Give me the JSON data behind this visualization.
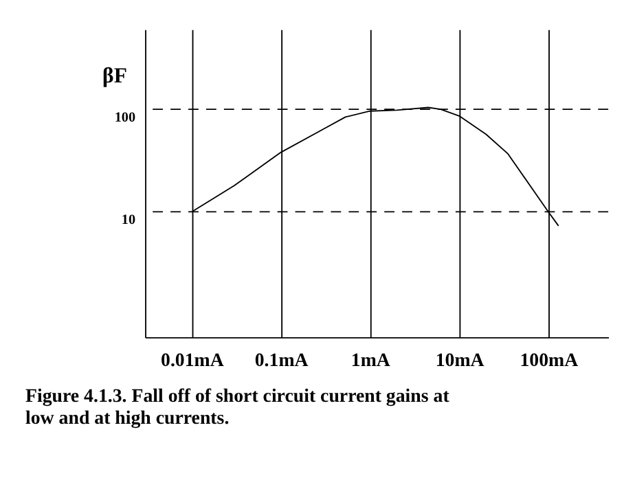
{
  "chart_data": {
    "type": "line",
    "ylabel": "βF",
    "log": "xy",
    "grid": "x",
    "marker": "none",
    "line_style": "solid",
    "x": [
      0.01,
      0.03,
      0.1,
      0.29,
      0.53,
      1,
      2,
      4.5,
      6.2,
      10,
      20,
      35,
      100,
      130
    ],
    "series": [
      {
        "color": "#000000",
        "values": [
          10,
          18,
          38,
          63,
          84,
          96,
          98,
          104,
          100,
          86,
          57,
          37,
          10,
          7.3
        ]
      }
    ],
    "xlim": [
      0.003,
      470
    ],
    "xticks": [
      {
        "value": 0.01,
        "label": "0.01mA"
      },
      {
        "value": 0.1,
        "label": "0.1mA"
      },
      {
        "value": 1,
        "label": "1mA"
      },
      {
        "value": 10,
        "label": "10mA"
      },
      {
        "value": 100,
        "label": "100mA"
      }
    ],
    "ylim": [
      0.6,
      600
    ],
    "yticks": [
      10,
      100
    ],
    "ref_lines": [
      {
        "axis": "y",
        "value": 10,
        "line_style": "dashed",
        "color": "#000000"
      },
      {
        "axis": "y",
        "value": 100,
        "line_style": "dashed",
        "color": "#000000"
      }
    ],
    "annotations": [
      "Figure 4.1.3. Fall off of short circuit current gains at\nlow and at high currents."
    ]
  }
}
